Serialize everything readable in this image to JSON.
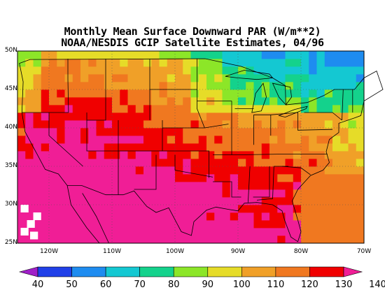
{
  "title": {
    "line1": "Monthly Mean Surface Downward PAR (W/m**2)",
    "line2": "NOAA/NESDIS GCIP Satellite Estimates, 04/96"
  },
  "map": {
    "lon_range": [
      -125,
      -70
    ],
    "lat_range": [
      25,
      50
    ],
    "lat_ticks": [
      {
        "value": 50,
        "label": "50N"
      },
      {
        "value": 45,
        "label": "45N"
      },
      {
        "value": 40,
        "label": "40N"
      },
      {
        "value": 35,
        "label": "35N"
      },
      {
        "value": 30,
        "label": "30N"
      },
      {
        "value": 25,
        "label": "25N"
      }
    ],
    "lon_ticks": [
      {
        "value": -120,
        "label": "120W"
      },
      {
        "value": -110,
        "label": "110W"
      },
      {
        "value": -100,
        "label": "100W"
      },
      {
        "value": -90,
        "label": "90W"
      },
      {
        "value": -80,
        "label": "80W"
      },
      {
        "value": -70,
        "label": "70W"
      }
    ]
  },
  "colorbar": {
    "levels": [
      40,
      50,
      60,
      70,
      80,
      90,
      100,
      110,
      120,
      130,
      140
    ],
    "colors": [
      "#a020c8",
      "#2040e8",
      "#1e8cf0",
      "#14c8d2",
      "#14d28c",
      "#8ce628",
      "#e6dc28",
      "#f0a028",
      "#f07820",
      "#f00000",
      "#f01e96"
    ]
  }
}
